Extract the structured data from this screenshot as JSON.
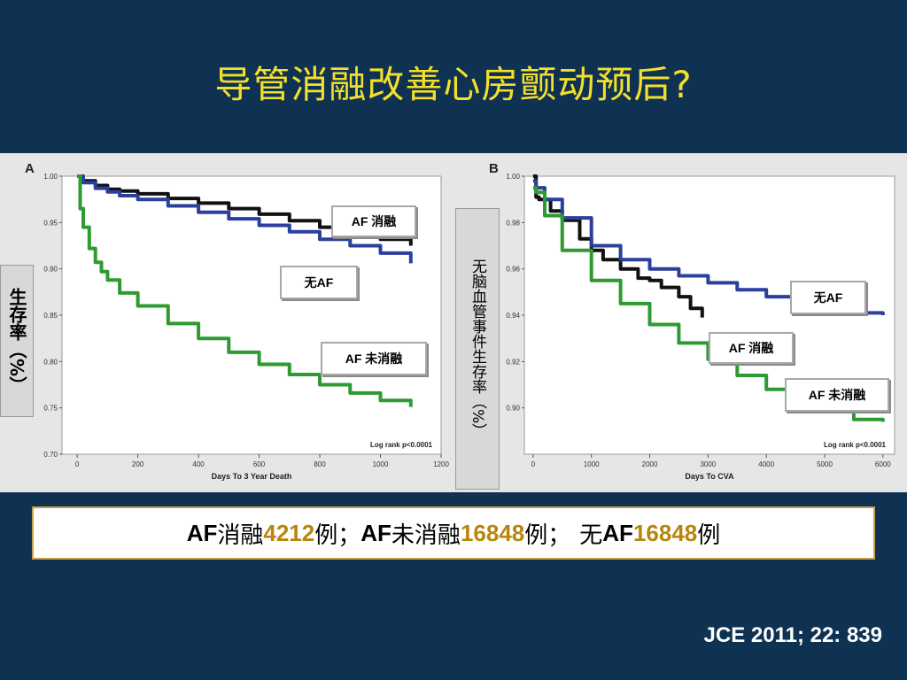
{
  "slide": {
    "title": "导管消融改善心房颤动预后?",
    "citation": "JCE 2011; 22: 839",
    "summary": {
      "p1": "AF",
      "p2": "消融",
      "p3": "4212",
      "p4": "例；",
      "p5": "AF",
      "p6": "未消融",
      "p7": "16848",
      "p8": "例；",
      "p9": "无",
      "p10": "AF",
      "p11": "16848",
      "p12": "例"
    }
  },
  "colors": {
    "background": "#0f3152",
    "title": "#f2e02a",
    "ablation": "#111111",
    "no_af": "#2b3f9c",
    "no_ablation": "#2e9b32",
    "numbers": "#b8860b"
  },
  "chart_data": [
    {
      "type": "line",
      "panel_label": "A",
      "title": "",
      "xlabel": "Days To 3 Year Death",
      "ylabel": "生存率（%）",
      "xlim": [
        -50,
        1200
      ],
      "ylim": [
        0.7,
        1.0
      ],
      "xticks": [
        0,
        200,
        400,
        600,
        800,
        1000,
        1200
      ],
      "xtick_labels": [
        "0",
        "200",
        "400",
        "600",
        "800",
        "1000",
        "1200"
      ],
      "yticks": [
        0.7,
        0.75,
        0.8,
        0.85,
        0.9,
        0.95,
        1.0
      ],
      "ytick_labels": [
        "0.70",
        "0.75",
        "0.80",
        "0.85",
        "0.90",
        "0.95",
        "1.00"
      ],
      "annotation": "Log rank p<0.0001",
      "grid": false,
      "series": [
        {
          "name": "AF 消融",
          "color": "#111111",
          "x": [
            0,
            20,
            60,
            100,
            140,
            200,
            300,
            400,
            500,
            600,
            700,
            800,
            900,
            1000,
            1100
          ],
          "y": [
            1.0,
            0.995,
            0.99,
            0.986,
            0.984,
            0.981,
            0.976,
            0.971,
            0.965,
            0.959,
            0.952,
            0.945,
            0.939,
            0.932,
            0.925
          ]
        },
        {
          "name": "无AF",
          "color": "#2b3f9c",
          "x": [
            0,
            20,
            60,
            100,
            140,
            200,
            300,
            400,
            500,
            600,
            700,
            800,
            900,
            1000,
            1100
          ],
          "y": [
            1.0,
            0.993,
            0.987,
            0.983,
            0.979,
            0.975,
            0.968,
            0.961,
            0.954,
            0.947,
            0.94,
            0.932,
            0.925,
            0.917,
            0.906
          ]
        },
        {
          "name": "AF 未消融",
          "color": "#2e9b32",
          "x": [
            0,
            10,
            20,
            40,
            60,
            80,
            100,
            140,
            200,
            300,
            400,
            500,
            600,
            700,
            800,
            900,
            1000,
            1100
          ],
          "y": [
            1.0,
            0.965,
            0.945,
            0.922,
            0.907,
            0.897,
            0.888,
            0.874,
            0.86,
            0.841,
            0.825,
            0.81,
            0.797,
            0.786,
            0.775,
            0.766,
            0.758,
            0.751
          ]
        }
      ]
    },
    {
      "type": "line",
      "panel_label": "B",
      "title": "",
      "xlabel": "Days To CVA",
      "ylabel": "无脑血管事件生存率（%）",
      "xlim": [
        -150,
        6200
      ],
      "ylim": [
        0.88,
        1.0
      ],
      "xticks": [
        0,
        1000,
        2000,
        3000,
        4000,
        5000,
        6000
      ],
      "xtick_labels": [
        "0",
        "1000",
        "2000",
        "3000",
        "4000",
        "5000",
        "6000"
      ],
      "yticks": [
        0.9,
        0.92,
        0.94,
        0.96,
        0.98,
        1.0
      ],
      "ytick_labels": [
        "0.90",
        "0.92",
        "0.94",
        "0.96",
        "0.98",
        "1.00"
      ],
      "annotation": "Log rank p<0.0001",
      "grid": false,
      "series": [
        {
          "name": "AF 消融",
          "color": "#111111",
          "x": [
            0,
            50,
            100,
            300,
            500,
            800,
            1000,
            1200,
            1500,
            1800,
            2000,
            2200,
            2500,
            2700,
            2900
          ],
          "y": [
            1.0,
            0.991,
            0.99,
            0.985,
            0.981,
            0.973,
            0.968,
            0.964,
            0.96,
            0.956,
            0.955,
            0.952,
            0.948,
            0.943,
            0.939
          ]
        },
        {
          "name": "无AF",
          "color": "#2b3f9c",
          "x": [
            0,
            50,
            200,
            500,
            1000,
            1500,
            2000,
            2500,
            3000,
            3500,
            4000,
            4500,
            5000,
            5500,
            6000
          ],
          "y": [
            0.998,
            0.995,
            0.99,
            0.982,
            0.97,
            0.964,
            0.96,
            0.957,
            0.954,
            0.951,
            0.948,
            0.945,
            0.943,
            0.941,
            0.94
          ]
        },
        {
          "name": "AF 未消融",
          "color": "#2e9b32",
          "x": [
            0,
            50,
            200,
            500,
            1000,
            1500,
            2000,
            2500,
            3000,
            3500,
            4000,
            4500,
            5000,
            5500,
            6000
          ],
          "y": [
            0.995,
            0.993,
            0.983,
            0.968,
            0.955,
            0.945,
            0.936,
            0.928,
            0.921,
            0.914,
            0.908,
            0.903,
            0.899,
            0.895,
            0.894
          ]
        }
      ]
    }
  ]
}
